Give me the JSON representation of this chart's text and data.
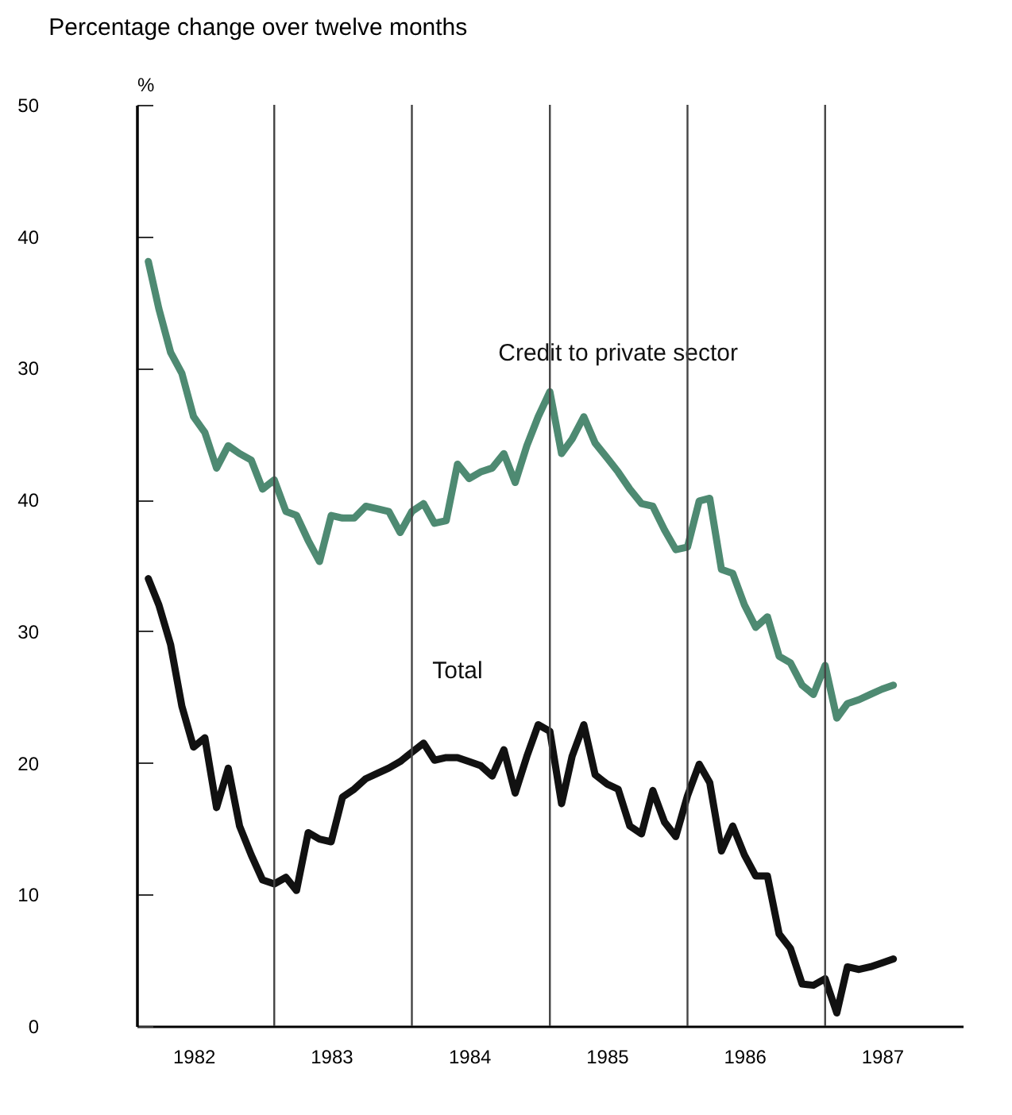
{
  "chart_data": {
    "type": "line",
    "title": "Percentage change over twelve months",
    "y2label": "%",
    "x": [
      "1982-02",
      "1982-03",
      "1982-04",
      "1982-05",
      "1982-06",
      "1982-07",
      "1982-08",
      "1982-09",
      "1982-10",
      "1982-11",
      "1982-12",
      "1983-01",
      "1983-02",
      "1983-03",
      "1983-04",
      "1983-05",
      "1983-06",
      "1983-07",
      "1983-08",
      "1983-09",
      "1983-10",
      "1983-11",
      "1983-12",
      "1984-01",
      "1984-02",
      "1984-03",
      "1984-04",
      "1984-05",
      "1984-06",
      "1984-07",
      "1984-08",
      "1984-09",
      "1984-10",
      "1984-11",
      "1984-12",
      "1985-01",
      "1985-02",
      "1985-03",
      "1985-04",
      "1985-05",
      "1985-06",
      "1985-07",
      "1985-08",
      "1985-09",
      "1985-10",
      "1985-11",
      "1985-12",
      "1986-01",
      "1986-02",
      "1986-03",
      "1986-04",
      "1986-05",
      "1986-06",
      "1986-07",
      "1986-08",
      "1986-09",
      "1986-10",
      "1986-11",
      "1986-12",
      "1987-01",
      "1987-02",
      "1987-03",
      "1987-04",
      "1987-05",
      "1987-06",
      "1987-07"
    ],
    "series": [
      {
        "name": "Credit to private sector",
        "color": "#4e8a72",
        "axis": "y2",
        "values": [
          38.1,
          34.5,
          31.2,
          29.6,
          26.3,
          25.1,
          22.4,
          24.1,
          23.5,
          23.0,
          20.8,
          21.5,
          19.1,
          18.8,
          16.9,
          15.3,
          18.8,
          18.6,
          18.6,
          19.5,
          19.3,
          19.1,
          17.5,
          19.1,
          19.7,
          18.2,
          18.4,
          22.7,
          21.6,
          22.1,
          22.4,
          23.5,
          21.3,
          24.1,
          26.3,
          28.2,
          23.5,
          24.6,
          26.3,
          24.3,
          23.2,
          22.1,
          20.8,
          19.7,
          19.5,
          17.7,
          16.2,
          16.4,
          19.9,
          20.1,
          14.7,
          14.4,
          12.0,
          10.3,
          11.1,
          8.1,
          7.6,
          5.9,
          5.2,
          7.4,
          3.4,
          4.5,
          4.8,
          5.2,
          5.6,
          5.9
        ]
      },
      {
        "name": "Total",
        "color": "#111111",
        "values": [
          34.0,
          32.0,
          29.0,
          24.3,
          21.2,
          21.9,
          16.6,
          19.6,
          15.2,
          13.0,
          11.1,
          10.8,
          11.3,
          10.3,
          14.7,
          14.2,
          14.0,
          17.4,
          18.0,
          18.8,
          19.2,
          19.6,
          20.1,
          20.8,
          21.5,
          20.2,
          20.4,
          20.4,
          20.1,
          19.8,
          19.0,
          21.0,
          17.7,
          20.5,
          22.9,
          22.4,
          16.9,
          20.5,
          22.9,
          19.1,
          18.4,
          18.0,
          15.2,
          14.6,
          17.9,
          15.5,
          14.4,
          17.5,
          19.9,
          18.5,
          13.3,
          15.2,
          13.0,
          11.4,
          11.4,
          7.0,
          5.9,
          3.2,
          3.1,
          3.6,
          1.0,
          4.5,
          4.3,
          4.5,
          4.8,
          5.1
        ]
      }
    ],
    "xlim": [
      "1982-01",
      "1988-01"
    ],
    "xticks": [
      {
        "value": "1982-06",
        "label": "1982"
      },
      {
        "value": "1983-06",
        "label": "1983"
      },
      {
        "value": "1984-06",
        "label": "1984"
      },
      {
        "value": "1985-06",
        "label": "1985"
      },
      {
        "value": "1986-06",
        "label": "1986"
      },
      {
        "value": "1987-06",
        "label": "1987"
      }
    ],
    "ylim": [
      0,
      70
    ],
    "yticks": [
      0,
      10,
      20,
      30,
      40
    ],
    "y2lim": [
      -20,
      50
    ],
    "y2ticks": [
      30,
      40,
      50
    ],
    "ref_lines": [
      {
        "axis": "x",
        "value": "1983-01",
        "color": "#444444"
      },
      {
        "axis": "x",
        "value": "1984-01",
        "color": "#444444"
      },
      {
        "axis": "x",
        "value": "1985-01",
        "color": "#444444"
      },
      {
        "axis": "x",
        "value": "1986-01",
        "color": "#444444"
      },
      {
        "axis": "x",
        "value": "1987-01",
        "color": "#444444"
      }
    ]
  }
}
